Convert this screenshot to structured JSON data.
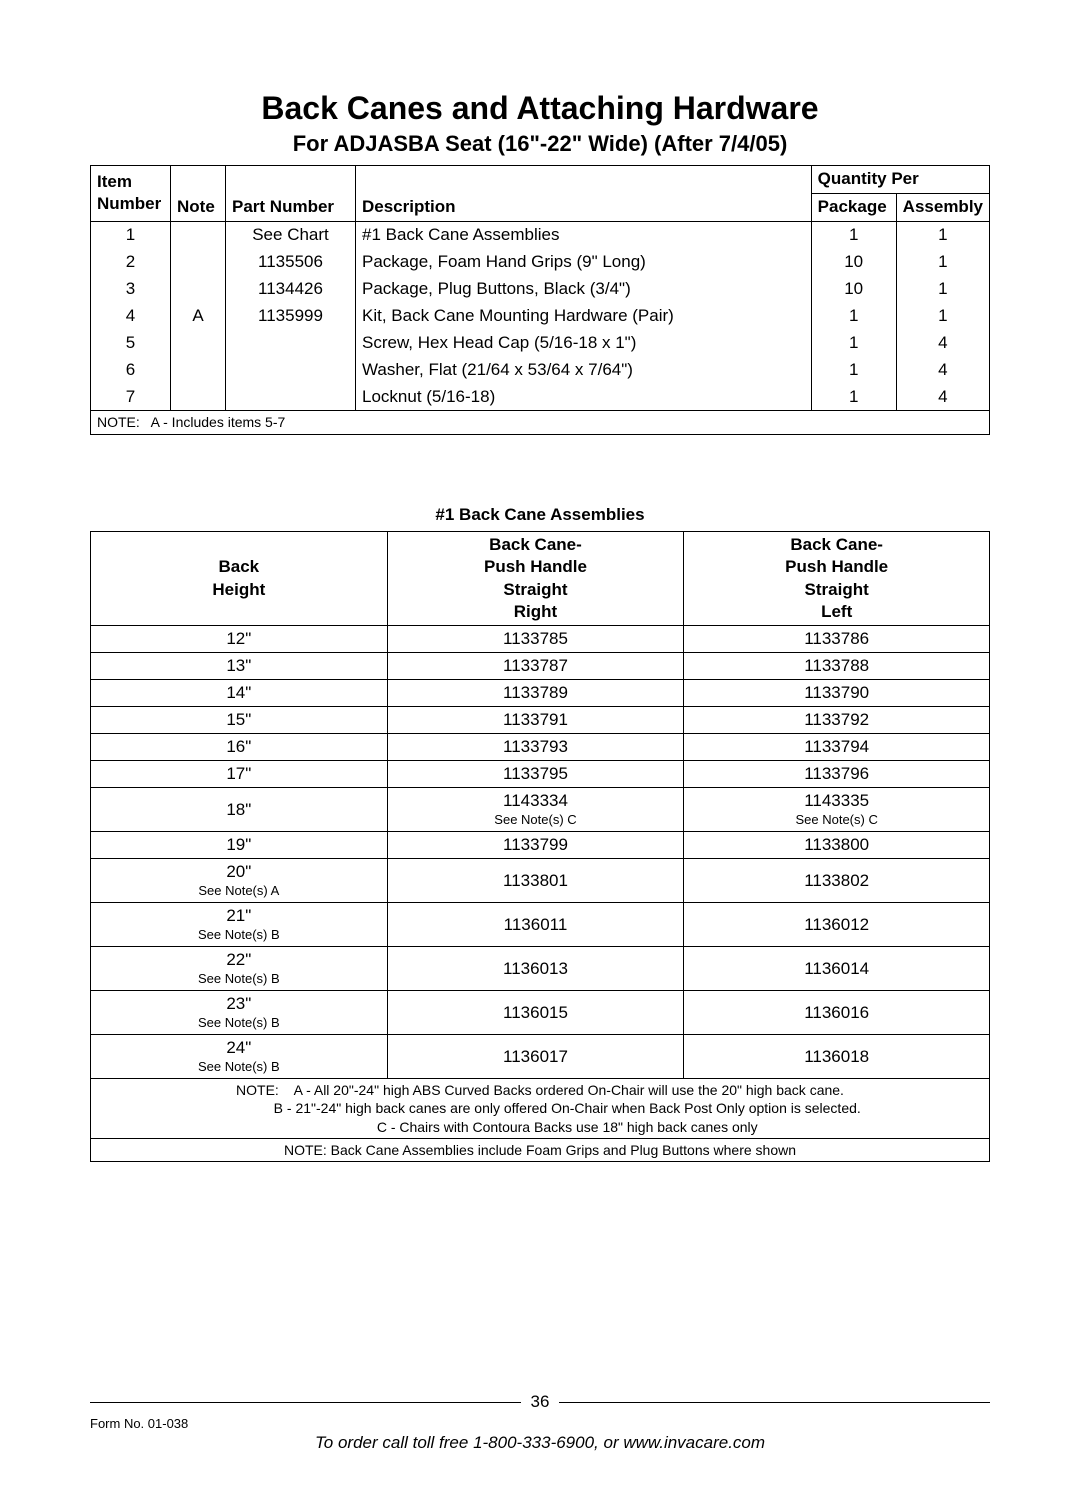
{
  "title": "Back Canes and Attaching Hardware",
  "subtitle": "For ADJASBA Seat (16\"-22\" Wide) (After 7/4/05)",
  "parts_table": {
    "headers": {
      "item_number_l1": "Item",
      "item_number_l2": "Number",
      "note": "Note",
      "part_number": "Part Number",
      "description": "Description",
      "qty_per": "Quantity Per",
      "package": "Package",
      "assembly": "Assembly"
    },
    "rows": [
      {
        "item": "1",
        "note": "",
        "part": "See Chart",
        "desc": "#1 Back Cane Assemblies",
        "pkg": "1",
        "asm": "1"
      },
      {
        "item": "2",
        "note": "",
        "part": "1135506",
        "desc": "Package, Foam Hand Grips (9\" Long)",
        "pkg": "10",
        "asm": "1"
      },
      {
        "item": "3",
        "note": "",
        "part": "1134426",
        "desc": "Package, Plug Buttons, Black (3/4\")",
        "pkg": "10",
        "asm": "1"
      },
      {
        "item": "4",
        "note": "A",
        "part": "1135999",
        "desc": "Kit, Back Cane Mounting Hardware (Pair)",
        "pkg": "1",
        "asm": "1"
      },
      {
        "item": "5",
        "note": "",
        "part": "",
        "desc": "Screw, Hex Head Cap (5/16-18 x 1\")",
        "pkg": "1",
        "asm": "4"
      },
      {
        "item": "6",
        "note": "",
        "part": "",
        "desc": "Washer, Flat (21/64 x 53/64 x 7/64\")",
        "pkg": "1",
        "asm": "4"
      },
      {
        "item": "7",
        "note": "",
        "part": "",
        "desc": "Locknut (5/16-18)",
        "pkg": "1",
        "asm": "4"
      }
    ],
    "note_line": "NOTE:   A - Includes items 5-7"
  },
  "assemblies_title": "#1 Back Cane Assemblies",
  "assemblies_table": {
    "headers": {
      "back_height_l1": "Back",
      "back_height_l2": "Height",
      "right_l1": "Back Cane-",
      "right_l2": "Push Handle",
      "right_l3": "Straight",
      "right_l4": "Right",
      "left_l1": "Back Cane-",
      "left_l2": "Push Handle",
      "left_l3": "Straight",
      "left_l4": "Left"
    },
    "rows": [
      {
        "h": "12\"",
        "hn": "",
        "r": "1133785",
        "rn": "",
        "l": "1133786",
        "ln": ""
      },
      {
        "h": "13\"",
        "hn": "",
        "r": "1133787",
        "rn": "",
        "l": "1133788",
        "ln": ""
      },
      {
        "h": "14\"",
        "hn": "",
        "r": "1133789",
        "rn": "",
        "l": "1133790",
        "ln": ""
      },
      {
        "h": "15\"",
        "hn": "",
        "r": "1133791",
        "rn": "",
        "l": "1133792",
        "ln": ""
      },
      {
        "h": "16\"",
        "hn": "",
        "r": "1133793",
        "rn": "",
        "l": "1133794",
        "ln": ""
      },
      {
        "h": "17\"",
        "hn": "",
        "r": "1133795",
        "rn": "",
        "l": "1133796",
        "ln": ""
      },
      {
        "h": "18\"",
        "hn": "",
        "r": "1143334",
        "rn": "See Note(s) C",
        "l": "1143335",
        "ln": "See Note(s) C"
      },
      {
        "h": "19\"",
        "hn": "",
        "r": "1133799",
        "rn": "",
        "l": "1133800",
        "ln": ""
      },
      {
        "h": "20\"",
        "hn": "See Note(s) A",
        "r": "1133801",
        "rn": "",
        "l": "1133802",
        "ln": ""
      },
      {
        "h": "21\"",
        "hn": "See Note(s) B",
        "r": "1136011",
        "rn": "",
        "l": "1136012",
        "ln": ""
      },
      {
        "h": "22\"",
        "hn": "See Note(s) B",
        "r": "1136013",
        "rn": "",
        "l": "1136014",
        "ln": ""
      },
      {
        "h": "23\"",
        "hn": "See Note(s) B",
        "r": "1136015",
        "rn": "",
        "l": "1136016",
        "ln": ""
      },
      {
        "h": "24\"",
        "hn": "See Note(s) B",
        "r": "1136017",
        "rn": "",
        "l": "1136018",
        "ln": ""
      }
    ],
    "notes_label": "NOTE:",
    "note_a": "A - All 20\"-24\" high ABS Curved Backs ordered On-Chair will use the 20\" high back cane.",
    "note_b": "B - 21\"-24\" high back canes are only offered On-Chair when Back Post Only option is selected.",
    "note_c": "C - Chairs with Contoura Backs use 18\" high back canes only",
    "note_bottom": "NOTE: Back Cane Assemblies include Foam Grips and Plug Buttons where shown"
  },
  "footer": {
    "page_number": "36",
    "form_no": "Form No. 01-038",
    "order_line": "To order call toll free 1-800-333-6900, or www.invacare.com"
  },
  "colors": {
    "text": "#000000",
    "background": "#ffffff",
    "border": "#000000"
  },
  "fonts": {
    "family": "Arial",
    "title_size": 32,
    "subtitle_size": 22,
    "body_size": 17,
    "small_size": 14,
    "note_size": 13
  }
}
